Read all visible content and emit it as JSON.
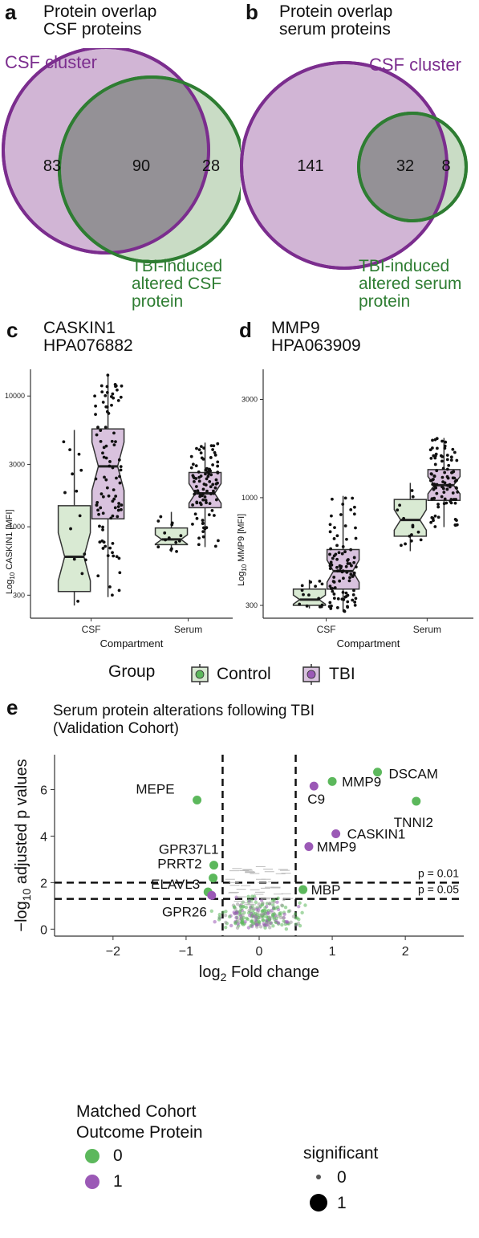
{
  "venn_a": {
    "panel": "a",
    "title_line1": "Protein overlap",
    "title_line2": "CSF proteins",
    "left_label": "CSF cluster",
    "right_label_lines": [
      "TBI-induced",
      "altered CSF",
      "protein"
    ],
    "left_only": "83",
    "overlap": "90",
    "right_only": "28",
    "purple": "#7B2D8E",
    "green": "#2E7D32"
  },
  "venn_b": {
    "panel": "b",
    "title_line1": "Protein overlap",
    "title_line2": "serum proteins",
    "left_label": "CSF cluster",
    "right_label_lines": [
      "TBI-induced",
      "altered serum",
      "protein"
    ],
    "left_only": "141",
    "overlap": "32",
    "right_only": "8"
  },
  "box_c": {
    "panel": "c",
    "title_line1": "CASKIN1",
    "title_line2": "HPA076882",
    "ylabel_main": "Log",
    "ylabel_sub": "10",
    "ylabel_rest": " CASKIN1 [MFI]"
  },
  "box_d": {
    "panel": "d",
    "title_line1": "MMP9",
    "title_line2": "HPA063909",
    "ylabel_main": "Log",
    "ylabel_sub": "10",
    "ylabel_rest": " MMP9 [MFI]"
  },
  "box_legend": {
    "title": "Group",
    "control": "Control",
    "tbi": "TBI",
    "control_fill": "#D9EAD3",
    "tbi_fill": "#D9C2DE"
  },
  "volcano": {
    "panel": "e",
    "title_line1": "Serum protein alterations following TBI",
    "title_line2": "(Validation Cohort)",
    "xlabel_main": "log",
    "xlabel_sub": "2",
    "xlabel_rest": " Fold change",
    "ylabel_pre": "−log",
    "ylabel_sub": "10",
    "ylabel_rest": " adjusted p values",
    "p001": "p = 0.01",
    "p005": "p = 0.05",
    "legend1_title_line1": "Matched Cohort",
    "legend1_title_line2": "Outcome Protein",
    "legend1_items": [
      "0",
      "1"
    ],
    "legend2_title": "significant",
    "legend2_items": [
      "0",
      "1"
    ],
    "green": "#5CB85C",
    "purple": "#9B59B6"
  },
  "chart_data": [
    {
      "type": "venn",
      "sets": [
        "CSF cluster",
        "TBI-induced altered CSF protein"
      ],
      "regions": {
        "CSF cluster only": 83,
        "overlap": 90,
        "TBI-induced only": 28
      }
    },
    {
      "type": "venn",
      "sets": [
        "CSF cluster",
        "TBI-induced altered serum protein"
      ],
      "regions": {
        "CSF cluster only": 141,
        "overlap": 32,
        "TBI-induced only": 8
      }
    },
    {
      "type": "box",
      "ylabel": "Log10 CASKIN1 [MFI]",
      "xlabel": "Compartment",
      "yscale": "log",
      "ylim": [
        200,
        16000
      ],
      "yticks": [
        300,
        1000,
        3000,
        10000
      ],
      "categories": [
        "CSF",
        "Serum"
      ],
      "series": [
        {
          "name": "Control",
          "boxes": [
            {
              "category": "CSF",
              "min": 250,
              "q1": 320,
              "median": 590,
              "q3": 1450,
              "max": 5500
            },
            {
              "category": "Serum",
              "min": 640,
              "q1": 730,
              "median": 800,
              "q3": 980,
              "max": 1300
            }
          ]
        },
        {
          "name": "TBI",
          "boxes": [
            {
              "category": "CSF",
              "min": 290,
              "q1": 1150,
              "median": 2900,
              "q3": 5600,
              "max": 14500
            },
            {
              "category": "Serum",
              "min": 700,
              "q1": 1400,
              "median": 1800,
              "q3": 2600,
              "max": 4400
            }
          ]
        }
      ]
    },
    {
      "type": "box",
      "ylabel": "Log10 MMP9 [MFI]",
      "xlabel": "Compartment",
      "yscale": "log",
      "ylim": [
        260,
        4200
      ],
      "yticks": [
        300,
        1000,
        3000
      ],
      "categories": [
        "CSF",
        "Serum"
      ],
      "series": [
        {
          "name": "Control",
          "boxes": [
            {
              "category": "CSF",
              "min": 290,
              "q1": 300,
              "median": 320,
              "q3": 360,
              "max": 400
            },
            {
              "category": "Serum",
              "min": 550,
              "q1": 650,
              "median": 780,
              "q3": 980,
              "max": 1180
            }
          ]
        },
        {
          "name": "TBI",
          "boxes": [
            {
              "category": "CSF",
              "min": 280,
              "q1": 360,
              "median": 440,
              "q3": 560,
              "max": 1020
            },
            {
              "category": "Serum",
              "min": 720,
              "q1": 970,
              "median": 1150,
              "q3": 1370,
              "max": 1950
            }
          ]
        }
      ]
    },
    {
      "type": "scatter",
      "xlabel": "log2 Fold change",
      "ylabel": "-log10 adjusted p values",
      "xlim": [
        -2.8,
        2.8
      ],
      "ylim": [
        -0.3,
        7.5
      ],
      "xticks": [
        -2,
        -1,
        0,
        1,
        2
      ],
      "yticks": [
        0,
        2,
        4,
        6
      ],
      "vlines": [
        -0.5,
        0.5
      ],
      "hlines": [
        {
          "y": 2,
          "label": "p = 0.01"
        },
        {
          "y": 1.3,
          "label": "p = 0.05"
        }
      ],
      "labeled_points": [
        {
          "label": "DSCAM",
          "x": 1.62,
          "y": 6.75,
          "group": 0
        },
        {
          "label": "MMP9",
          "x": 1.0,
          "y": 6.35,
          "group": 0
        },
        {
          "label": "C9",
          "x": 0.75,
          "y": 6.15,
          "group": 1
        },
        {
          "label": "MEPE",
          "x": -0.85,
          "y": 5.55,
          "group": 0
        },
        {
          "label": "TNNI2",
          "x": 2.15,
          "y": 5.5,
          "group": 0
        },
        {
          "label": "CASKIN1",
          "x": 1.05,
          "y": 4.1,
          "group": 1
        },
        {
          "label": "MMP9",
          "x": 0.68,
          "y": 3.55,
          "group": 1
        },
        {
          "label": "GPR37L1",
          "x": -0.62,
          "y": 2.75,
          "group": 0
        },
        {
          "label": "PRRT2",
          "x": -0.63,
          "y": 2.2,
          "group": 0
        },
        {
          "label": "MBP",
          "x": 0.6,
          "y": 1.7,
          "group": 0
        },
        {
          "label": "ELAVL3",
          "x": -0.7,
          "y": 1.6,
          "group": 0
        },
        {
          "label": "GPR26",
          "x": -0.65,
          "y": 1.45,
          "group": 1
        }
      ]
    }
  ]
}
